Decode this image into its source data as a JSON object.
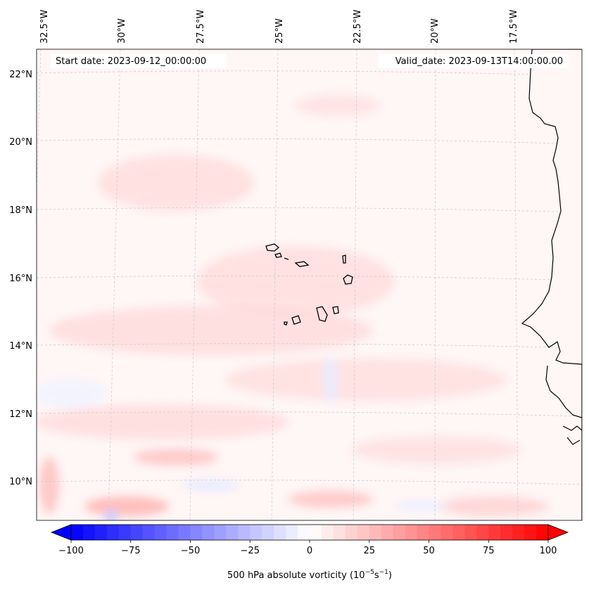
{
  "map": {
    "start_date": "Start date: 2023-09-12_00:00:00",
    "valid_date": "Valid_date: 2023-09-13T14:00:00.00",
    "lon_labels": [
      "32.5°W",
      "30°W",
      "27.5°W",
      "25°W",
      "22.5°W",
      "20°W",
      "17.5°W"
    ],
    "lat_labels": [
      "22°N",
      "20°N",
      "18°N",
      "16°N",
      "14°N",
      "12°N",
      "10°N"
    ]
  },
  "colorbar": {
    "label_prefix": "500 hPa absolute vorticity (10",
    "exp1": "−5",
    "mid": "s",
    "exp2": "−1",
    "suffix": ")",
    "ticks": [
      -100,
      -75,
      -50,
      -25,
      0,
      25,
      50,
      75,
      100
    ],
    "tick_labels": [
      "−100",
      "−75",
      "−50",
      "−25",
      "0",
      "25",
      "50",
      "75",
      "100"
    ],
    "range": [
      -100,
      100
    ],
    "low_color": "#0000ff",
    "high_color": "#ff0000",
    "mid_color": "#ffffff"
  },
  "colors": {
    "background_field": "#fff6f6",
    "coast": "#000000",
    "grid": "#cccccc"
  }
}
